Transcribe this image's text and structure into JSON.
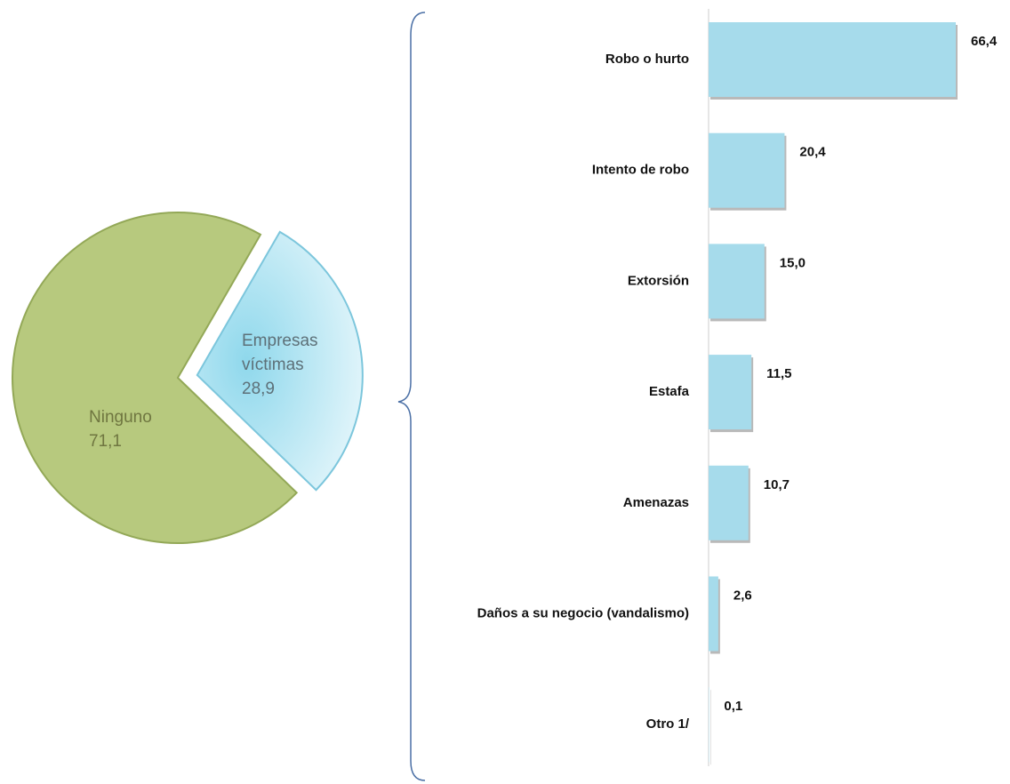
{
  "chart_data": [
    {
      "type": "pie",
      "categories": [
        "Ninguno",
        "Empresas víctimas"
      ],
      "values": [
        71.1,
        28.9
      ],
      "value_labels": [
        "71,1",
        "28,9"
      ],
      "colors": [
        "#b7c97e",
        "#b3e6f3"
      ]
    },
    {
      "type": "bar",
      "categories": [
        "Robo o hurto",
        "Intento de robo",
        "Extorsión",
        "Estafa",
        "Amenazas",
        "Daños a su negocio (vandalismo)",
        "Otro 1/"
      ],
      "values": [
        66.4,
        20.4,
        15.0,
        11.5,
        10.7,
        2.6,
        0.1
      ],
      "value_labels": [
        "66,4",
        "20,4",
        "15,0",
        "11,5",
        "10,7",
        "2,6",
        "0,1"
      ],
      "color": "#a6dbeb"
    }
  ]
}
